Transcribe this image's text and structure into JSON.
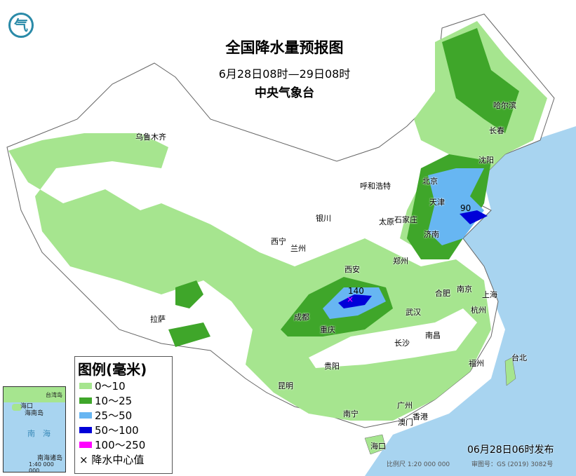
{
  "header": {
    "title": "全国降水量预报图",
    "period": "6月28日08时—29日08时",
    "issuer": "中央气象台"
  },
  "logo": {
    "icon": "cma-logo"
  },
  "legend": {
    "title": "图例(毫米)",
    "items": [
      {
        "label": "0～10",
        "color": "#a6e58f"
      },
      {
        "label": "10～25",
        "color": "#3fa62a"
      },
      {
        "label": "25～50",
        "color": "#67b6f2"
      },
      {
        "label": "50～100",
        "color": "#0000d8"
      },
      {
        "label": "100～250",
        "color": "#ff00ff"
      }
    ],
    "center_marker": "× 降水中心值"
  },
  "cities": [
    "乌鲁木齐",
    "哈尔滨",
    "长春",
    "沈阳",
    "北京",
    "呼和浩特",
    "天津",
    "银川",
    "太原",
    "石家庄",
    "济南",
    "西宁",
    "兰州",
    "郑州",
    "西安",
    "合肥",
    "南京",
    "上海",
    "成都",
    "武汉",
    "杭州",
    "重庆",
    "拉萨",
    "长沙",
    "南昌",
    "福州",
    "台北",
    "贵阳",
    "昆明",
    "南宁",
    "广州",
    "香港",
    "澳门",
    "海口"
  ],
  "rain_centers": [
    "90",
    "140"
  ],
  "sea_labels": {
    "south_sea": "南　海",
    "hainan": "海南岛",
    "islands": "南海诸岛",
    "taiwan": "台湾岛",
    "inset_scale": "1:40 000 000",
    "inset_haikou": "海口"
  },
  "footer": {
    "published": "06月28日06时发布",
    "scale": "比例尺 1:20 000 000",
    "review_no": "审图号：GS (2019) 3082号"
  },
  "colors": {
    "sea": "#a8d4f0",
    "land": "#ffffff",
    "border": "#888888"
  }
}
